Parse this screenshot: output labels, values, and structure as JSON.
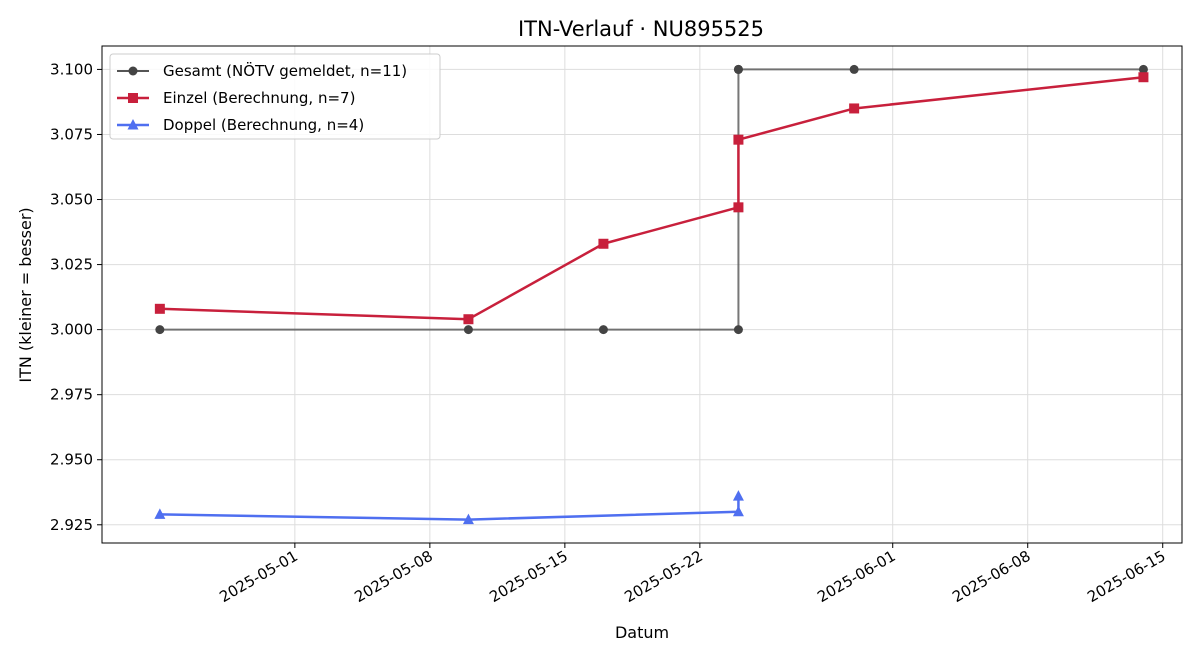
{
  "chart_data": {
    "type": "line",
    "title": "ITN-Verlauf · NU895525",
    "xlabel": "Datum",
    "ylabel": "ITN  (kleiner = besser)",
    "xlim": [
      "2025-04-21",
      "2025-06-16"
    ],
    "ylim": [
      2.918,
      3.109
    ],
    "x_ticks": [
      "2025-05-01",
      "2025-05-08",
      "2025-05-15",
      "2025-05-22",
      "2025-06-01",
      "2025-06-08",
      "2025-06-15"
    ],
    "y_ticks": [
      "2.925",
      "2.950",
      "2.975",
      "3.000",
      "3.025",
      "3.050",
      "3.075",
      "3.100"
    ],
    "grid": true,
    "legend_position": "top-left",
    "series": [
      {
        "name": "Gesamt (NÖTV gemeldet, n=11)",
        "color": "#555555",
        "marker": "circle",
        "points": [
          {
            "x": "2025-04-24",
            "y": 3.0
          },
          {
            "x": "2025-05-10",
            "y": 3.0
          },
          {
            "x": "2025-05-17",
            "y": 3.0
          },
          {
            "x": "2025-05-24",
            "y": 3.0
          },
          {
            "x": "2025-05-24",
            "y": 3.1
          },
          {
            "x": "2025-05-24",
            "y": 3.1
          },
          {
            "x": "2025-05-30",
            "y": 3.1
          },
          {
            "x": "2025-06-14",
            "y": 3.1
          }
        ]
      },
      {
        "name": "Einzel (Berechnung, n=7)",
        "color": "#c8203c",
        "marker": "square",
        "points": [
          {
            "x": "2025-04-24",
            "y": 3.008
          },
          {
            "x": "2025-05-10",
            "y": 3.004
          },
          {
            "x": "2025-05-17",
            "y": 3.033
          },
          {
            "x": "2025-05-24",
            "y": 3.047
          },
          {
            "x": "2025-05-24",
            "y": 3.073
          },
          {
            "x": "2025-05-30",
            "y": 3.085
          },
          {
            "x": "2025-06-14",
            "y": 3.097
          }
        ]
      },
      {
        "name": "Doppel (Berechnung, n=4)",
        "color": "#4f6ff0",
        "marker": "triangle",
        "points": [
          {
            "x": "2025-04-24",
            "y": 2.929
          },
          {
            "x": "2025-05-10",
            "y": 2.927
          },
          {
            "x": "2025-05-24",
            "y": 2.93
          },
          {
            "x": "2025-05-24",
            "y": 2.936
          }
        ]
      }
    ]
  }
}
